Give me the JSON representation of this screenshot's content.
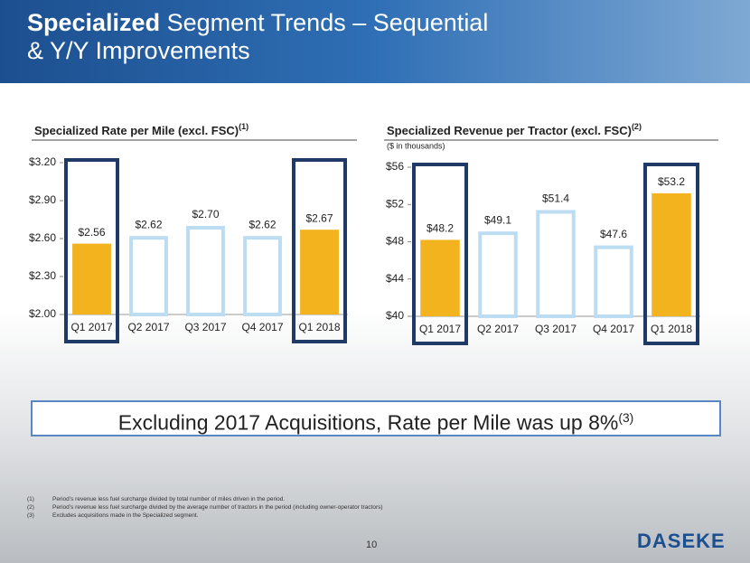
{
  "header": {
    "title_bold": "Specialized",
    "title_rest": "Segment Trends – Sequential & Y/Y Improvements"
  },
  "chart_data": [
    {
      "type": "bar",
      "title": "Specialized Rate per Mile (excl. FSC)",
      "title_note": "(1)",
      "categories": [
        "Q1 2017",
        "Q2 2017",
        "Q3 2017",
        "Q4 2017",
        "Q1 2018"
      ],
      "values": [
        2.56,
        2.62,
        2.7,
        2.62,
        2.67
      ],
      "value_labels": [
        "$2.56",
        "$2.62",
        "$2.70",
        "$2.62",
        "$2.67"
      ],
      "colors": [
        "#f2b31f",
        "none",
        "none",
        "none",
        "#f2b31f"
      ],
      "outline_color": "#bcdcf1",
      "highlight_color": "#1f3a66",
      "ylim": [
        2.0,
        3.2
      ],
      "yticks": [
        {
          "value": 2.0,
          "label": "$2.00"
        },
        {
          "value": 2.3,
          "label": "$2.30"
        },
        {
          "value": 2.6,
          "label": "$2.60"
        },
        {
          "value": 2.9,
          "label": "$2.90"
        },
        {
          "value": 3.2,
          "label": "$3.20"
        }
      ]
    },
    {
      "type": "bar",
      "title": "Specialized Revenue per Tractor (excl. FSC)",
      "title_note": "(2)",
      "subtitle": "($ in thousands)",
      "categories": [
        "Q1 2017",
        "Q2 2017",
        "Q3 2017",
        "Q4 2017",
        "Q1 2018"
      ],
      "values": [
        48.2,
        49.1,
        51.4,
        47.6,
        53.2
      ],
      "value_labels": [
        "$48.2",
        "$49.1",
        "$51.4",
        "$47.6",
        "$53.2"
      ],
      "colors": [
        "#f2b31f",
        "none",
        "none",
        "none",
        "#f2b31f"
      ],
      "outline_color": "#bcdcf1",
      "highlight_color": "#1f3a66",
      "ylim": [
        40,
        56
      ],
      "yticks": [
        {
          "value": 40,
          "label": "$40"
        },
        {
          "value": 44,
          "label": "$44"
        },
        {
          "value": 48,
          "label": "$48"
        },
        {
          "value": 52,
          "label": "$52"
        },
        {
          "value": 56,
          "label": "$56"
        }
      ]
    }
  ],
  "callout": {
    "text": "Excluding 2017 Acquisitions, Rate per Mile was up 8%",
    "note": "(3)"
  },
  "footnotes": [
    {
      "num": "(1)",
      "text": "Period’s revenue less fuel surcharge divided by total number of miles driven in the period."
    },
    {
      "num": "(2)",
      "text": "Period’s revenue less fuel surcharge divided by the average number of tractors in the period (including owner-operator tractors)"
    },
    {
      "num": "(3)",
      "text": "Excludes acquisitions made in the Specialized segment."
    }
  ],
  "page_number": "10",
  "logo": "DASEKE"
}
